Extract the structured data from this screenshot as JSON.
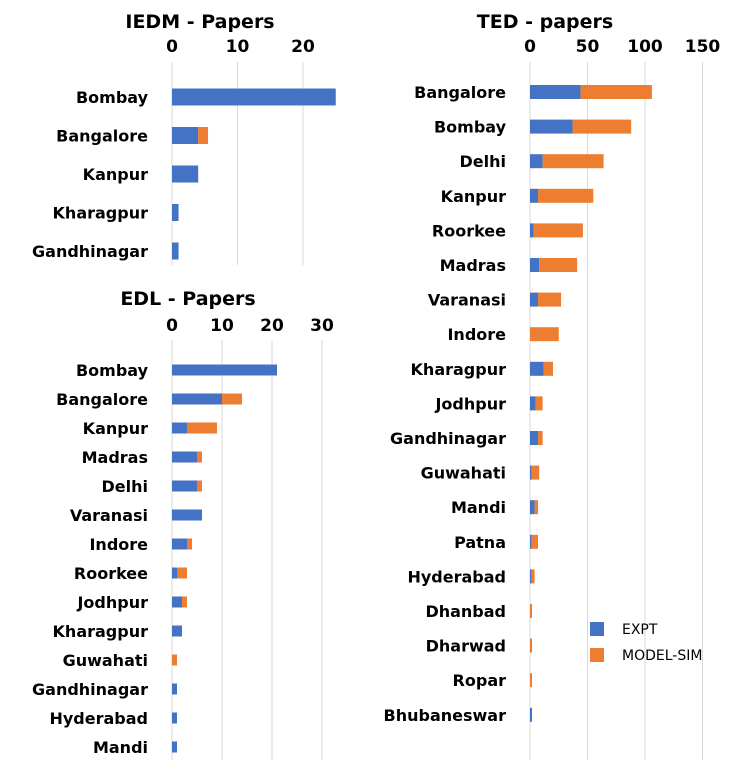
{
  "colors": {
    "expt": "#4472C4",
    "model": "#ED7D31",
    "grid": "#d9d9d9"
  },
  "legend": {
    "placement": "bottom-right",
    "items": [
      "EXPT",
      "MODEL-SIM"
    ]
  },
  "chart_data": [
    {
      "id": "iedm",
      "type": "bar",
      "orientation": "horizontal",
      "stacked": true,
      "title": "IEDM - Papers",
      "xlim": [
        0,
        25
      ],
      "xticks": [
        0,
        10,
        20
      ],
      "grid": true,
      "categories": [
        "Bombay",
        "Bangalore",
        "Kanpur",
        "Kharagpur",
        "Gandhinagar"
      ],
      "series": [
        {
          "name": "EXPT",
          "values": [
            25,
            4,
            4,
            1,
            1
          ]
        },
        {
          "name": "MODEL-SIM",
          "values": [
            0,
            1.5,
            0,
            0,
            0
          ]
        }
      ]
    },
    {
      "id": "edl",
      "type": "bar",
      "orientation": "horizontal",
      "stacked": true,
      "title": "EDL - Papers",
      "xlim": [
        0,
        35
      ],
      "xticks": [
        0,
        10,
        20,
        30
      ],
      "grid": true,
      "categories": [
        "Bombay",
        "Bangalore",
        "Kanpur",
        "Madras",
        "Delhi",
        "Varanasi",
        "Indore",
        "Roorkee",
        "Jodhpur",
        "Kharagpur",
        "Guwahati",
        "Gandhinagar",
        "Hyderabad",
        "Mandi"
      ],
      "series": [
        {
          "name": "EXPT",
          "values": [
            21,
            10,
            3,
            5,
            5,
            6,
            3,
            1,
            2,
            2,
            0,
            1,
            1,
            1
          ]
        },
        {
          "name": "MODEL-SIM",
          "values": [
            0,
            4,
            6,
            1,
            1,
            0,
            1,
            2,
            1,
            0,
            1,
            0,
            0,
            0
          ]
        }
      ]
    },
    {
      "id": "ted",
      "type": "bar",
      "orientation": "horizontal",
      "stacked": true,
      "title": "TED - papers",
      "xlim": [
        0,
        175
      ],
      "xticks": [
        0,
        50,
        100,
        150
      ],
      "grid": true,
      "categories": [
        "Bangalore",
        "Bombay",
        "Delhi",
        "Kanpur",
        "Roorkee",
        "Madras",
        "Varanasi",
        "Indore",
        "Kharagpur",
        "Jodhpur",
        "Gandhinagar",
        "Guwahati",
        "Mandi",
        "Patna",
        "Hyderabad",
        "Dhanbad",
        "Dharwad",
        "Ropar",
        "Bhubaneswar"
      ],
      "series": [
        {
          "name": "EXPT",
          "values": [
            44,
            37,
            11,
            7,
            3,
            8,
            7,
            0,
            12,
            5,
            7,
            1,
            4,
            1,
            1,
            0,
            0,
            0,
            1
          ]
        },
        {
          "name": "MODEL-SIM",
          "values": [
            62,
            51,
            53,
            48,
            43,
            33,
            20,
            25,
            8,
            6,
            4,
            7,
            3,
            6,
            3,
            1,
            1,
            1,
            0
          ]
        }
      ]
    }
  ]
}
